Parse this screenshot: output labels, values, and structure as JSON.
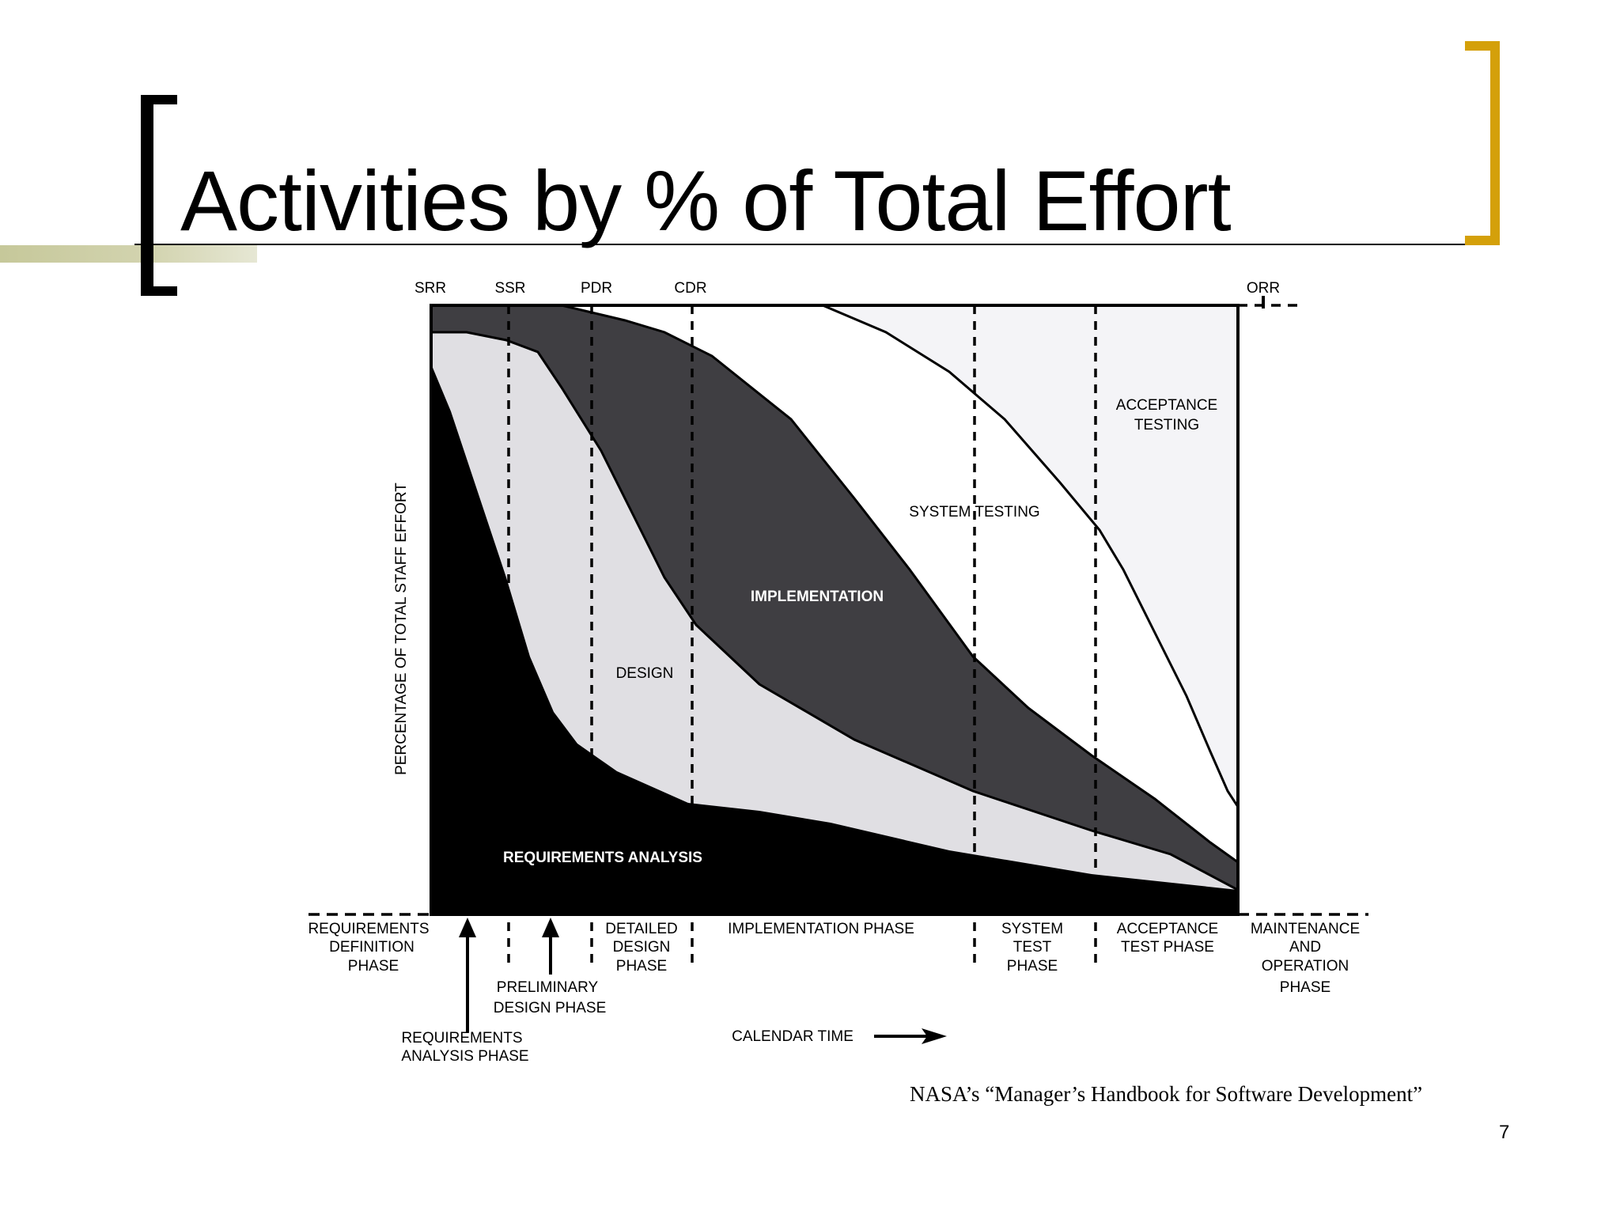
{
  "slide": {
    "title": "Activities by % of Total Effort",
    "citation": "NASA’s “Manager’s Handbook for Software Development”",
    "page_number": "7",
    "colors": {
      "accent_bracket": "#d4a00a",
      "stripe": "#c6c89a",
      "text": "#000000"
    }
  },
  "diagram": {
    "milestones": [
      "SRR",
      "SSR",
      "PDR",
      "CDR",
      "ORR"
    ],
    "y_axis_label": "PERCENTAGE OF TOTAL STAFF EFFORT",
    "regions": {
      "requirements_analysis": "REQUIREMENTS ANALYSIS",
      "design": "DESIGN",
      "implementation": "IMPLEMENTATION",
      "system_testing": "SYSTEM TESTING",
      "acceptance_testing": [
        "ACCEPTANCE",
        "TESTING"
      ]
    },
    "phases": {
      "requirements_definition": [
        "REQUIREMENTS",
        "DEFINITION",
        "PHASE"
      ],
      "detailed_design": [
        "DETAILED",
        "DESIGN",
        "PHASE"
      ],
      "implementation": "IMPLEMENTATION PHASE",
      "system_test": [
        "SYSTEM",
        "TEST",
        "PHASE"
      ],
      "acceptance_test": [
        "ACCEPTANCE",
        "TEST PHASE"
      ],
      "maintenance": [
        "MAINTENANCE",
        "AND",
        "OPERATION",
        "PHASE"
      ],
      "preliminary_design": [
        "PRELIMINARY",
        "DESIGN PHASE"
      ],
      "requirements_analysis": [
        "REQUIREMENTS",
        "ANALYSIS PHASE"
      ]
    },
    "x_axis_label": "CALENDAR TIME",
    "region_colors": {
      "requirements_analysis": "#000000",
      "design": "#e0dfe3",
      "implementation": "#3f3e42",
      "system_testing": "#ffffff",
      "acceptance_testing": "#f4f4f7"
    }
  }
}
